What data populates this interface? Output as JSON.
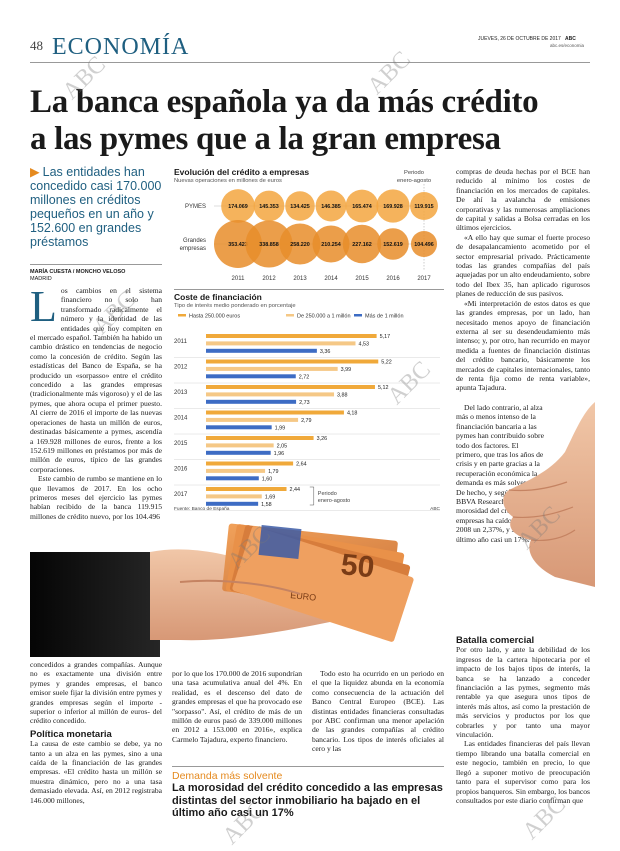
{
  "header": {
    "page_number": "48",
    "section": "ECONOMÍA",
    "date": "JUEVES, 26 DE OCTUBRE DE 2017",
    "brand": "ABC",
    "url": "abc.es/economia"
  },
  "headline": {
    "line1": "La banca española ya da más crédito",
    "line2": "a las pymes que a la gran empresa"
  },
  "deck": "Las entidades han concedido casi 170.000 millones en créditos pequeños en un año y 152.600 en grandes préstamos",
  "byline": "MARÍA CUESTA / MONCHO VELOSO",
  "city": "MADRID",
  "body": {
    "col1_p1": "os cambios en el sistema financiero no solo han transformado radicalmente el número y la identidad de las entidades que hoy compiten en el mercado español. También ha habido un cambio drástico en tendencias de negocio como la concesión de crédito. Según las estadísticas del Banco de España, se ha producido un «sorpasso» entre el crédito concedido a las grandes empresas (tradicionalmente más vigoroso) y el de las pymes, que ahora ocupa el primer puesto. Al cierre de 2016 el importe de las nuevas operaciones de hasta un millón de euros, destinadas básicamente a pymes, ascendía a 169.928 millones de euros, frente a los 152.619 millones en préstamos por más de millón de euros, típico de las grandes corporaciones.",
    "col1_p1_initial": "L",
    "col1_p2": "Este cambio de rumbo se mantiene en lo que llevamos de 2017. En los ocho primeros meses del ejercicio las pymes habían recibido de la banca 119.915 millones de crédito nuevo, por los 104.496",
    "col1_p3": "concedidos a grandes compañías. Aunque no es exactamente una división entre pymes y grandes empresas, el banco emisor suele fijar la división entre pymes y grandes empresas según el importe - superior o inferior al millón de euros- del crédito concedido.",
    "col1_sub": "Política monetaria",
    "col1_p4": "La causa de este cambio se debe, ya no tanto a un alza en las pymes, sino a una caída de la financiación de las grandes empresas. «El crédito hasta un millón se muestra dinámico, pero no a una tasa demasiado elevada. Así, en 2012 registraba 146.000 millones,",
    "col2_p1": "por lo que los 170.000 de 2016 supondrían una tasa acumulativa anual del 4%. En realidad, es el descenso del dato de grandes empresas el que ha provocado ese \"sorpasso\". Así, el crédito de más de un millón de euros pasó de 339.000 millones en 2012 a 153.000 en 2016», explica Carmelo Tajadura, experto financiero.",
    "col3_p1": "Todo esto ha ocurrido en un periodo en el que la liquidez abunda en la economía como consecuencia de la actuación del Banco Central Europeo (BCE). Las distintas entidades financieras consultadas por ABC confirman una menor apelación de las grandes compañías al crédito bancario. Los tipos de interés oficiales al cero y las",
    "col4_p1": "compras de deuda hechas por el BCE han reducido al mínimo los costes de financiación en los mercados de capitales. De ahí la avalancha de emisiones corporativas y las numerosas ampliaciones de capital y salidas a Bolsa cerradas en los últimos ejercicios.",
    "col4_p2": "«A ello hay que sumar el fuerte proceso de desapalancamiento acometido por el sector empresarial privado. Prácticamente todas las grandes compañías del país aquejadas por un alto endeudamiento, sobre todo del Ibex 35, han aplicado rigurosos planes de reducción de sus pasivos.",
    "col4_p3": "«Mi interpretación de estos datos es que las grandes empresas, por un lado, han necesitado menos apoyo de financiación externa al ser su desendeudamiento más intenso; y, por otro, han recurrido en mayor medida a fuentes de financiación distintas del crédito bancario, básicamente los mercados de capitales internacionales, tanto de renta fija como de renta variable», apunta Tajadura.",
    "col4_p4": "Del lado contrario, al alza más o menos intenso de la financiación bancaria a las pymes han contribuido sobre todo dos factores. El primero, que tras los años de crisis y en parte gracias a la recuperación económica la demanda es más solvente. De hecho, y según datos de BBVA Research, la morosidad del crédito a empresas ha caído desde 2008 un 2,37%, y solo en el último año casi un 17%.",
    "col4_sub": "Batalla comercial",
    "col4_p5": "Por otro lado, y ante la debilidad de los ingresos de la cartera hipotecaria por el impacto de los bajos tipos de interés, la banca se ha lanzado a conceder financiación a las pymes, segmento más rentable ya que asegura unos tipos de interés más altos, así como la prestación de más servicios y productos por los que cobrarles y por tanto una mayor vinculación.",
    "col4_p6": "Las entidades financieras del país llevan tiempo librando una batalla comercial en este negocio, también en precio, lo que llegó a suponer motivo de preocupación tanto para el supervisor como para los propios banqueros. Sin embargo, los bancos consultados por este diario confirman que"
  },
  "callout": {
    "head": "Demanda más solvente",
    "body": "La morosidad del crédito concedido a las empresas distintas del sector inmobiliario ha bajado en el último año casi un 17%"
  },
  "chart_data": [
    {
      "type": "scatter",
      "title": "Evolución del crédito a empresas",
      "subtitle": "Nuevas operaciones en millones de euros",
      "period_note": "Periodo enero-agosto",
      "categories": [
        "2011",
        "2012",
        "2013",
        "2014",
        "2015",
        "2016",
        "2017"
      ],
      "series": [
        {
          "name": "PYMES",
          "values": [
            174069,
            145353,
            134425,
            146385,
            165474,
            169928,
            119915
          ],
          "labels": [
            "174.069",
            "145.353",
            "134.425",
            "146.385",
            "165.474",
            "169.928",
            "119.915"
          ]
        },
        {
          "name": "Grandes empresas",
          "values": [
            353423,
            338858,
            258220,
            210254,
            227162,
            152619,
            104496
          ],
          "labels": [
            "353.423",
            "338.858",
            "258.220",
            "210.254",
            "227.162",
            "152.619",
            "104.496"
          ]
        }
      ]
    },
    {
      "type": "bar",
      "title": "Coste de financiación",
      "subtitle": "Tipo de interés medio ponderado en porcentaje",
      "period_note": "Periodo enero-agosto",
      "source": "Fuente: Banco de España",
      "credit": "ABC",
      "categories": [
        "2011",
        "2012",
        "2013",
        "2014",
        "2015",
        "2016",
        "2017"
      ],
      "series": [
        {
          "name": "Hasta 250.000 euros",
          "color": "#f0a93a",
          "values": [
            5.17,
            5.22,
            5.12,
            4.18,
            3.26,
            2.64,
            2.44
          ],
          "labels": [
            "5,17",
            "5,22",
            "5,12",
            "4,18",
            "3,26",
            "2,64",
            "2,44"
          ]
        },
        {
          "name": "De 250.000 a 1 millón",
          "color": "#f5c886",
          "values": [
            4.53,
            3.99,
            3.88,
            2.79,
            2.05,
            1.79,
            1.69
          ],
          "labels": [
            "4,53",
            "3,99",
            "3,88",
            "2,79",
            "2,05",
            "1,79",
            "1,69"
          ]
        },
        {
          "name": "Más de 1 millón",
          "color": "#3d6cc4",
          "values": [
            3.36,
            2.72,
            2.73,
            1.99,
            1.96,
            1.6,
            1.58
          ],
          "labels": [
            "3,36",
            "2,72",
            "2,73",
            "1,99",
            "1,96",
            "1,60",
            "1,58"
          ]
        }
      ]
    }
  ],
  "watermark": "ABC",
  "photo": {
    "note_text": "50",
    "note_text_2": "EURO"
  },
  "colors": {
    "accent": "#1f5f80",
    "orange": "#e58a1f",
    "pyme_bubble": "#f3a640",
    "big_bubble": "#e88d2a"
  }
}
